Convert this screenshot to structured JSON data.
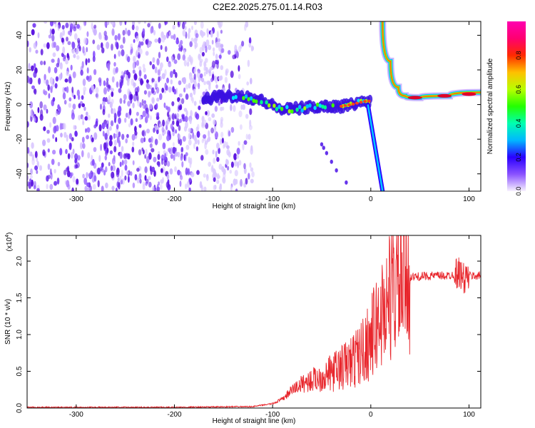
{
  "title": "C2E2.2025.275.01.14.R03",
  "colors": {
    "signal": "#e8262c",
    "noise": "#7a2ee0",
    "axis": "#000000"
  },
  "colorbar": {
    "label": "Normalized spectral amplitude",
    "ticks": [
      "0.0",
      "0.2",
      "0.4",
      "0.6",
      "0.8"
    ],
    "tick_values": [
      0.0,
      0.2,
      0.4,
      0.6,
      0.8
    ],
    "range": [
      0,
      1
    ],
    "stops": [
      "#f7f2ff",
      "#8a52ff",
      "#2a00ff",
      "#00b8ff",
      "#00ffb0",
      "#24ff00",
      "#b8ff00",
      "#ffc000",
      "#ff2a00",
      "#ff0070",
      "#ff00b0"
    ]
  },
  "chart_data": [
    {
      "type": "heatmap",
      "xlabel": "Height of straight line (km)",
      "ylabel": "Frequency (Hz)",
      "xlim": [
        -350,
        112
      ],
      "ylim": [
        -50,
        48
      ],
      "xticks": [
        -300,
        -200,
        -100,
        0,
        100
      ],
      "xtick_labels": [
        "-300",
        "-200",
        "-100",
        "0",
        "100"
      ],
      "yticks": [
        -40,
        -20,
        0,
        20,
        40
      ],
      "ytick_labels": [
        "-40",
        "-20",
        "0",
        "20",
        "40"
      ],
      "noise_region_x": [
        -350,
        -120
      ],
      "signal_track": [
        {
          "x": -170,
          "y": 3
        },
        {
          "x": -150,
          "y": 5
        },
        {
          "x": -130,
          "y": 5
        },
        {
          "x": -110,
          "y": 2
        },
        {
          "x": -90,
          "y": -3
        },
        {
          "x": -70,
          "y": -2
        },
        {
          "x": -50,
          "y": -1
        },
        {
          "x": -30,
          "y": -1
        },
        {
          "x": -20,
          "y": 0
        },
        {
          "x": -5,
          "y": 2
        },
        {
          "x": 0,
          "y": 2
        }
      ],
      "steep_line": [
        {
          "x": -3,
          "y": 0
        },
        {
          "x": 12,
          "y": -50
        }
      ],
      "descending_curve": [
        {
          "x": 12,
          "y": 48
        },
        {
          "x": 20,
          "y": 25
        },
        {
          "x": 28,
          "y": 10
        },
        {
          "x": 35,
          "y": 5
        },
        {
          "x": 50,
          "y": 4
        },
        {
          "x": 80,
          "y": 5
        },
        {
          "x": 112,
          "y": 7
        }
      ],
      "scatter_tail": [
        {
          "x": -50,
          "y": -23
        },
        {
          "x": -48,
          "y": -25
        },
        {
          "x": -45,
          "y": -28
        },
        {
          "x": -40,
          "y": -33
        },
        {
          "x": -35,
          "y": -38
        },
        {
          "x": -25,
          "y": -45
        }
      ]
    },
    {
      "type": "line",
      "xlabel": "Height of straight line (km)",
      "ylabel": "SNR (10 * v/v)",
      "y_multiplier": "(x10",
      "y_multiplier_exp": "4",
      "y_multiplier_close": ")",
      "xlim": [
        -350,
        112
      ],
      "ylim": [
        0,
        2.35
      ],
      "xticks": [
        -300,
        -200,
        -100,
        0,
        100
      ],
      "xtick_labels": [
        "-300",
        "-200",
        "-100",
        "0",
        "100"
      ],
      "yticks": [
        0,
        0.5,
        1.0,
        1.5,
        2.0
      ],
      "ytick_labels": [
        "0.0",
        "0.5",
        "1.0",
        "1.5",
        "2.0"
      ],
      "series": [
        {
          "name": "SNR",
          "x": [
            -350,
            -200,
            -120,
            -100,
            -90,
            -80,
            -70,
            -60,
            -50,
            -40,
            -30,
            -20,
            -10,
            0,
            10,
            20,
            30,
            40,
            60,
            80,
            90,
            95,
            100,
            112
          ],
          "y": [
            0.01,
            0.01,
            0.02,
            0.06,
            0.12,
            0.25,
            0.33,
            0.38,
            0.42,
            0.48,
            0.55,
            0.62,
            0.75,
            0.95,
            1.25,
            1.55,
            1.72,
            1.78,
            1.8,
            1.8,
            1.85,
            1.75,
            1.8,
            1.8
          ]
        }
      ]
    }
  ]
}
